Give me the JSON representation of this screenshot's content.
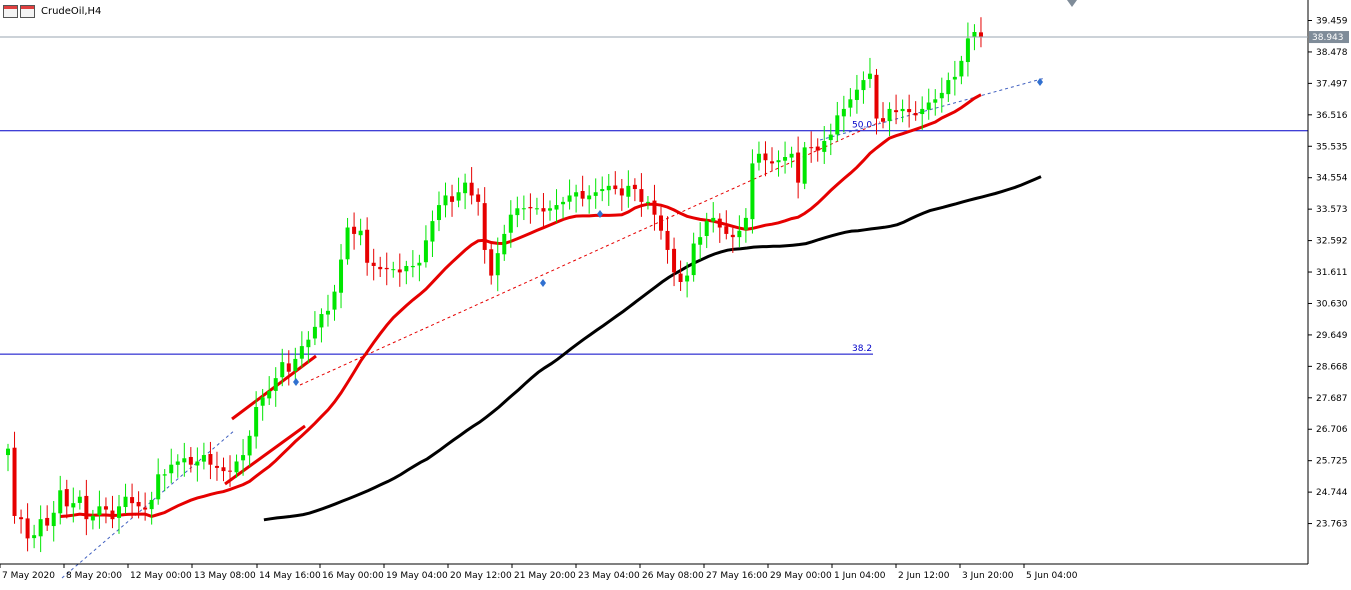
{
  "window": {
    "symbol_timeframe": "CrudeOil,H4",
    "icon": "chart-window-icon"
  },
  "price_scale": {
    "ticks": [
      "39.459",
      "38.478",
      "37.497",
      "36.516",
      "35.535",
      "34.554",
      "33.573",
      "32.592",
      "31.611",
      "30.630",
      "29.649",
      "28.668",
      "27.687",
      "26.706",
      "25.725",
      "24.744",
      "23.763"
    ],
    "current_price": "38.943"
  },
  "time_scale": {
    "labels": [
      "7 May 2020",
      "8 May 20:00",
      "12 May 00:00",
      "13 May 08:00",
      "14 May 16:00",
      "16 May 00:00",
      "19 May 04:00",
      "20 May 12:00",
      "21 May 20:00",
      "23 May 04:00",
      "26 May 08:00",
      "27 May 16:00",
      "29 May 00:00",
      "1 Jun 04:00",
      "2 Jun 12:00",
      "3 Jun 20:00",
      "5 Jun 04:00"
    ]
  },
  "fibonacci": [
    {
      "level": "50.0",
      "price": 36.02
    },
    {
      "level": "38.2",
      "price": 29.05
    }
  ],
  "colors": {
    "bull": "#00e600",
    "bear": "#e60000",
    "ma_fast": "#e60000",
    "ma_slow": "#000000",
    "fib": "#0000c8",
    "grid": "#9aa6b0"
  },
  "chart_data": {
    "type": "candlestick",
    "symbol": "CrudeOil",
    "timeframe": "H4",
    "ylim": [
      23.05,
      39.95
    ],
    "y_ticks": [
      39.459,
      38.478,
      37.497,
      36.516,
      35.535,
      34.554,
      33.573,
      32.592,
      31.611,
      30.63,
      29.649,
      28.668,
      27.687,
      26.706,
      25.725,
      24.744,
      23.763
    ],
    "x_labels": [
      "7 May 2020",
      "8 May 20:00",
      "12 May 00:00",
      "13 May 08:00",
      "14 May 16:00",
      "16 May 00:00",
      "19 May 04:00",
      "20 May 12:00",
      "21 May 20:00",
      "23 May 04:00",
      "26 May 08:00",
      "27 May 16:00",
      "29 May 00:00",
      "1 Jun 04:00",
      "2 Jun 12:00",
      "3 Jun 20:00",
      "5 Jun 04:00"
    ],
    "close": [
      26.1,
      24.0,
      23.9,
      23.3,
      23.4,
      23.9,
      23.7,
      24.1,
      24.8,
      24.3,
      24.4,
      24.6,
      23.9,
      24.0,
      24.3,
      24.2,
      23.9,
      24.3,
      24.6,
      24.4,
      24.3,
      24.2,
      24.5,
      25.3,
      25.3,
      25.6,
      25.7,
      25.8,
      25.6,
      25.7,
      25.9,
      25.6,
      25.5,
      25.4,
      25.4,
      25.7,
      25.9,
      26.5,
      27.4,
      27.7,
      27.9,
      28.3,
      28.8,
      28.5,
      28.9,
      29.3,
      29.5,
      29.9,
      30.3,
      30.4,
      31.0,
      32.0,
      33.0,
      32.8,
      32.9,
      31.9,
      31.8,
      31.7,
      31.7,
      31.7,
      31.6,
      31.8,
      31.8,
      31.9,
      32.6,
      33.2,
      33.7,
      34.0,
      33.8,
      34.1,
      34.4,
      34.0,
      33.8,
      32.3,
      31.5,
      32.2,
      32.8,
      33.4,
      33.6,
      33.6,
      33.6,
      33.6,
      33.5,
      33.6,
      33.7,
      33.8,
      34.0,
      34.1,
      33.9,
      34.0,
      34.1,
      34.2,
      34.3,
      34.2,
      34.0,
      34.3,
      34.2,
      33.8,
      33.8,
      33.4,
      32.9,
      32.3,
      31.6,
      31.3,
      31.5,
      32.5,
      32.7,
      33.2,
      33.3,
      33.0,
      32.8,
      32.7,
      32.9,
      33.3,
      35.0,
      35.3,
      35.1,
      35.0,
      35.1,
      35.2,
      35.3,
      34.4,
      35.5,
      35.5,
      35.4,
      35.7,
      35.9,
      36.5,
      36.7,
      37.0,
      37.3,
      37.6,
      37.8,
      36.4,
      36.3,
      36.7,
      36.6,
      36.7,
      36.6,
      36.5,
      36.7,
      36.9,
      37.0,
      37.2,
      37.6,
      37.7,
      38.2,
      38.9,
      39.1,
      38.94
    ]
  }
}
